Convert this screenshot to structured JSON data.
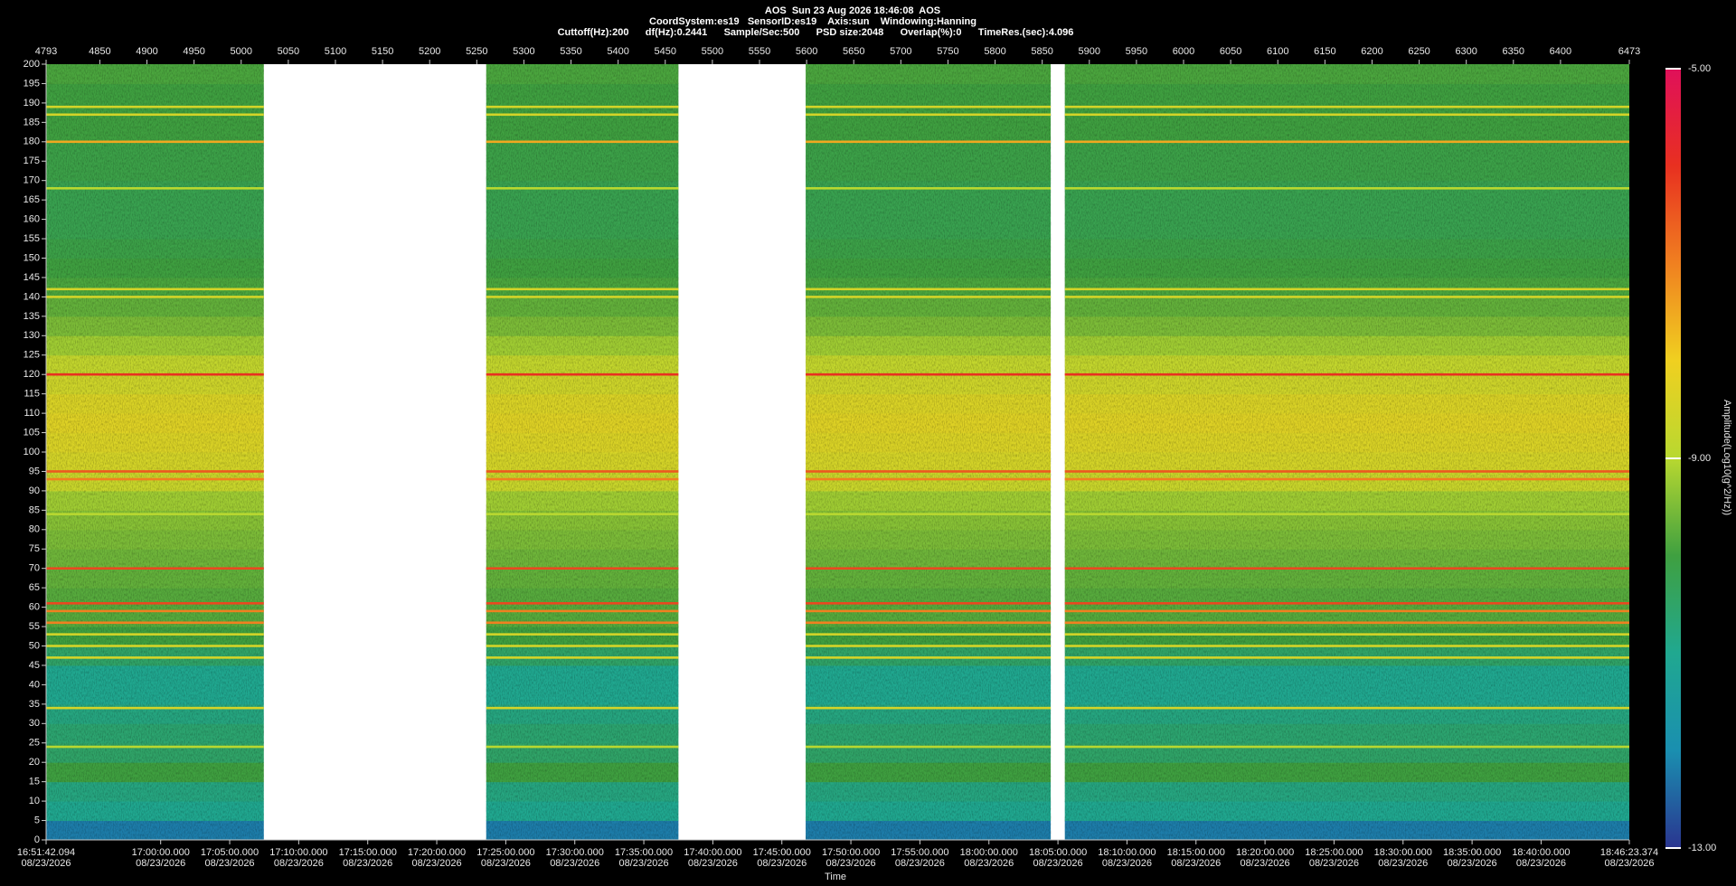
{
  "chart_data": {
    "type": "spectrogram",
    "title": "AOS  Sun 23 Aug 2026 18:46:08  AOS",
    "subtitle_lines": [
      "CoordSystem:es19   SensorID:es19    Axis:sun    Windowing:Hanning",
      "Cuttoff(Hz):200      df(Hz):0.2441      Sample/Sec:500      PSD size:2048      Overlap(%):0      TimeRes.(sec):4.096"
    ],
    "xlabel": "Time",
    "colorbar_label": "Amplitude(Log10(g^2/Hz))",
    "xlim": [
      4793,
      6473
    ],
    "xticks": [
      4793,
      4850,
      4900,
      4950,
      5000,
      5050,
      5100,
      5150,
      5200,
      5250,
      5300,
      5350,
      5400,
      5450,
      5500,
      5550,
      5600,
      5650,
      5700,
      5750,
      5800,
      5850,
      5900,
      5950,
      6000,
      6050,
      6100,
      6150,
      6200,
      6250,
      6300,
      6350,
      6400,
      6473
    ],
    "time_ticks": [
      {
        "value": 4793,
        "time": "16:51:42.094",
        "date": "08/23/2026"
      },
      {
        "value": 4914.56,
        "time": "17:00:00.000",
        "date": "08/23/2026"
      },
      {
        "value": 4987.8,
        "time": "17:05:00.000",
        "date": "08/23/2026"
      },
      {
        "value": 5061.04,
        "time": "17:10:00.000",
        "date": "08/23/2026"
      },
      {
        "value": 5134.29,
        "time": "17:15:00.000",
        "date": "08/23/2026"
      },
      {
        "value": 5207.53,
        "time": "17:20:00.000",
        "date": "08/23/2026"
      },
      {
        "value": 5280.77,
        "time": "17:25:00.000",
        "date": "08/23/2026"
      },
      {
        "value": 5354.01,
        "time": "17:30:00.000",
        "date": "08/23/2026"
      },
      {
        "value": 5427.25,
        "time": "17:35:00.000",
        "date": "08/23/2026"
      },
      {
        "value": 5500.5,
        "time": "17:40:00.000",
        "date": "08/23/2026"
      },
      {
        "value": 5573.74,
        "time": "17:45:00.000",
        "date": "08/23/2026"
      },
      {
        "value": 5646.98,
        "time": "17:50:00.000",
        "date": "08/23/2026"
      },
      {
        "value": 5720.22,
        "time": "17:55:00.000",
        "date": "08/23/2026"
      },
      {
        "value": 5793.46,
        "time": "18:00:00.000",
        "date": "08/23/2026"
      },
      {
        "value": 5866.71,
        "time": "18:05:00.000",
        "date": "08/23/2026"
      },
      {
        "value": 5939.95,
        "time": "18:10:00.000",
        "date": "08/23/2026"
      },
      {
        "value": 6013.19,
        "time": "18:15:00.000",
        "date": "08/23/2026"
      },
      {
        "value": 6086.43,
        "time": "18:20:00.000",
        "date": "08/23/2026"
      },
      {
        "value": 6159.67,
        "time": "18:25:00.000",
        "date": "08/23/2026"
      },
      {
        "value": 6232.91,
        "time": "18:30:00.000",
        "date": "08/23/2026"
      },
      {
        "value": 6306.16,
        "time": "18:35:00.000",
        "date": "08/23/2026"
      },
      {
        "value": 6379.4,
        "time": "18:40:00.000",
        "date": "08/23/2026"
      },
      {
        "value": 6473,
        "time": "18:46:23.374",
        "date": "08/23/2026"
      }
    ],
    "ylim": [
      0,
      200
    ],
    "yticks": [
      0,
      5,
      10,
      15,
      20,
      25,
      30,
      35,
      40,
      45,
      50,
      55,
      60,
      65,
      70,
      75,
      80,
      85,
      90,
      95,
      100,
      105,
      110,
      115,
      120,
      125,
      130,
      135,
      140,
      145,
      150,
      155,
      160,
      165,
      170,
      175,
      180,
      185,
      190,
      195,
      200
    ],
    "clim": [
      -13,
      -5
    ],
    "cticks": [
      {
        "value": -5,
        "label": "-5.00"
      },
      {
        "value": -9,
        "label": "-9.00"
      },
      {
        "value": -13,
        "label": "-13.00"
      }
    ],
    "colormap": [
      "#2a3590",
      "#1a8fb0",
      "#20a890",
      "#3fa040",
      "#b8d830",
      "#f0d020",
      "#f08020",
      "#e83020",
      "#e0105a"
    ],
    "segments": [
      [
        4793,
        5024
      ],
      [
        5260,
        5464
      ],
      [
        5599,
        5859
      ],
      [
        5874,
        6473
      ]
    ],
    "frequency_bins": [
      0,
      5,
      10,
      15,
      20,
      25,
      30,
      35,
      40,
      45,
      50,
      55,
      60,
      65,
      70,
      75,
      80,
      85,
      90,
      95,
      100,
      105,
      110,
      115,
      120,
      125,
      130,
      135,
      140,
      145,
      150,
      155,
      160,
      165,
      170,
      175,
      180,
      185,
      190,
      195,
      200
    ],
    "amplitude": [
      -12.2,
      -11,
      -10.8,
      -10,
      -10.5,
      -10.6,
      -10.8,
      -11,
      -11,
      -10.5,
      -10,
      -9.8,
      -9.8,
      -9.7,
      -9.6,
      -9.5,
      -9.4,
      -9.2,
      -8.7,
      -8.5,
      -8.4,
      -8.3,
      -8.4,
      -8.6,
      -8.8,
      -9.2,
      -9.5,
      -9.7,
      -9.9,
      -10,
      -10.1,
      -10.2,
      -10.2,
      -10.2,
      -10.1,
      -10.1,
      -10,
      -10,
      -10,
      -9.9
    ],
    "tones": {
      "frequency": [
        120,
        95,
        93,
        70,
        61,
        59,
        56,
        53,
        50,
        47,
        34,
        24,
        180,
        189,
        187,
        142,
        140,
        168,
        84
      ],
      "amplitude": [
        -6,
        -6.5,
        -7,
        -6.3,
        -6.3,
        -7,
        -7,
        -8.5,
        -8.5,
        -8.5,
        -8.5,
        -9,
        -7.5,
        -8.5,
        -8.5,
        -8.5,
        -8.5,
        -9,
        -9
      ]
    }
  }
}
